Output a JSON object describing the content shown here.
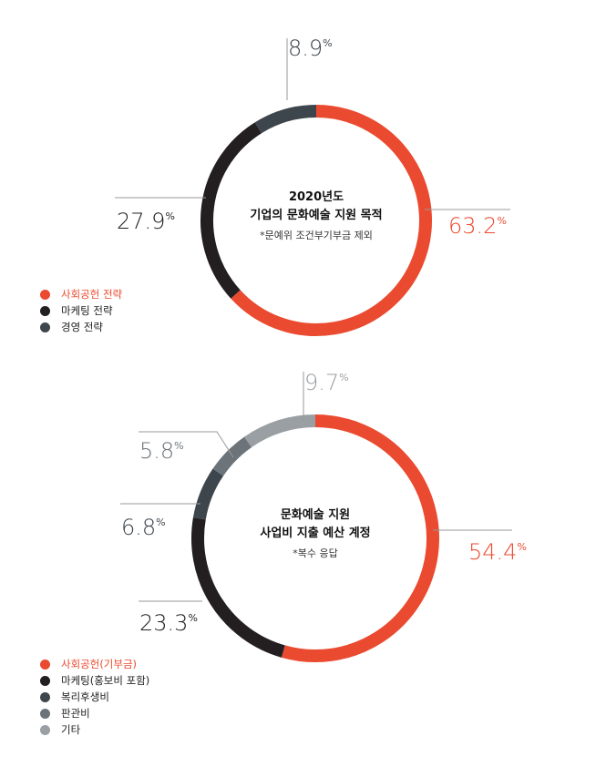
{
  "chart_data": [
    {
      "type": "donut",
      "title": "2020년도",
      "subtitle": "기업의 문화예술 지원 목적",
      "note": "*문예위 조건부기부금 제외",
      "unit": "%",
      "series": [
        {
          "name": "사회공헌 전략",
          "value": 63.2,
          "color": "#ea4a2f",
          "label": "63.2"
        },
        {
          "name": "마케팅 전략",
          "value": 27.9,
          "color": "#231f20",
          "label": "27.9"
        },
        {
          "name": "경영 전략",
          "value": 8.9,
          "color": "#3e464d",
          "label": "8.9"
        }
      ]
    },
    {
      "type": "donut",
      "title": "문화예술 지원",
      "subtitle": "사업비 지출 예산 계정",
      "note": "*복수 응답",
      "unit": "%",
      "series": [
        {
          "name": "사회공헌(기부금)",
          "value": 54.4,
          "color": "#ea4a2f",
          "label": "54.4"
        },
        {
          "name": "마케팅(홍보비 포함)",
          "value": 23.3,
          "color": "#231f20",
          "label": "23.3"
        },
        {
          "name": "복리후생비",
          "value": 6.8,
          "color": "#3e464d",
          "label": "6.8"
        },
        {
          "name": "판관비",
          "value": 5.8,
          "color": "#6c747a",
          "label": "5.8"
        },
        {
          "name": "기타",
          "value": 9.7,
          "color": "#9a9fa3",
          "label": "9.7"
        }
      ]
    }
  ]
}
